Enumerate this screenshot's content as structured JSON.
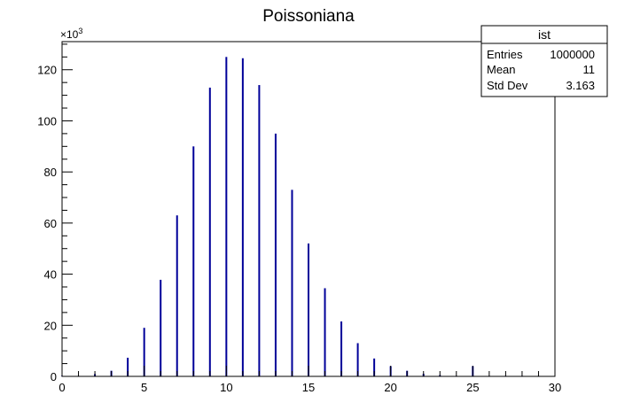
{
  "chart_data": {
    "type": "bar",
    "title": "Poissoniana",
    "xlabel": "",
    "ylabel": "",
    "y_multiplier": "×10",
    "y_multiplier_exp": "3",
    "xlim": [
      0,
      30
    ],
    "ylim": [
      0,
      131
    ],
    "x_ticks": [
      0,
      5,
      10,
      15,
      20,
      25,
      30
    ],
    "y_ticks": [
      0,
      20,
      40,
      60,
      80,
      100,
      120
    ],
    "grid": false,
    "series": [
      {
        "color": "#000099",
        "bins": [
          {
            "x": 0,
            "y": 0.05
          },
          {
            "x": 1,
            "y": 0.15
          },
          {
            "x": 2,
            "y": 0.9
          },
          {
            "x": 3,
            "y": 2.2
          },
          {
            "x": 4,
            "y": 7.3
          },
          {
            "x": 5,
            "y": 19.0
          },
          {
            "x": 6,
            "y": 37.8
          },
          {
            "x": 7,
            "y": 63.0
          },
          {
            "x": 8,
            "y": 90.0
          },
          {
            "x": 9,
            "y": 113.0
          },
          {
            "x": 10,
            "y": 125.0
          },
          {
            "x": 11,
            "y": 124.5
          },
          {
            "x": 12,
            "y": 114.0
          },
          {
            "x": 13,
            "y": 95.0
          },
          {
            "x": 14,
            "y": 73.0
          },
          {
            "x": 15,
            "y": 52.0
          },
          {
            "x": 16,
            "y": 34.5
          },
          {
            "x": 17,
            "y": 21.5
          },
          {
            "x": 18,
            "y": 13.0
          },
          {
            "x": 19,
            "y": 7.0
          },
          {
            "x": 20,
            "y": 4.0
          },
          {
            "x": 21,
            "y": 2.2
          },
          {
            "x": 22,
            "y": 1.0
          },
          {
            "x": 23,
            "y": 0.5
          },
          {
            "x": 24,
            "y": 0.2
          },
          {
            "x": 25,
            "y": 4.0
          },
          {
            "x": 26,
            "y": 0.06
          },
          {
            "x": 27,
            "y": 0.03
          },
          {
            "x": 28,
            "y": 0.02
          },
          {
            "x": 29,
            "y": 0.01
          }
        ]
      }
    ]
  },
  "stats_box": {
    "title": "ist",
    "rows": [
      {
        "label": "Entries",
        "value": "1000000"
      },
      {
        "label": "Mean",
        "value": "11"
      },
      {
        "label": "Std Dev",
        "value": "3.163"
      }
    ]
  }
}
